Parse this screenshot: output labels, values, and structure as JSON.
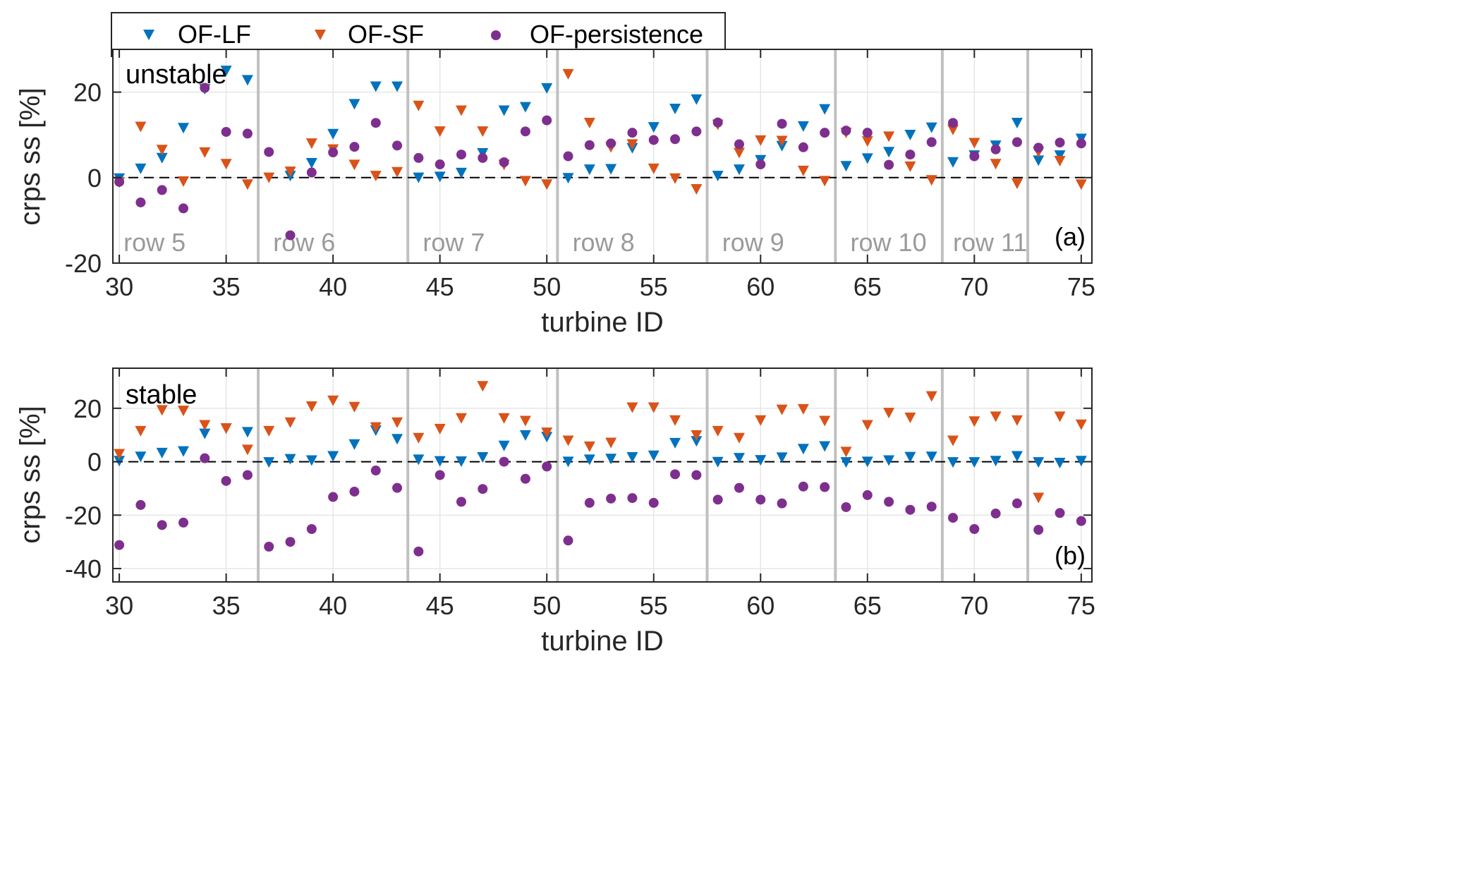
{
  "legend": {
    "entries": [
      {
        "name": "OF-LF",
        "color": "#0072BD",
        "marker": "triangle-down"
      },
      {
        "name": "OF-SF",
        "color": "#D95319",
        "marker": "triangle-down"
      },
      {
        "name": "OF-persistence",
        "color": "#7E2F8E",
        "marker": "circle"
      }
    ]
  },
  "chart_data": [
    {
      "type": "scatter",
      "panel_label": "(a)",
      "regime_label": "unstable",
      "xlabel": "turbine ID",
      "ylabel": "crps ss [%]",
      "xlim": [
        29.7,
        75.5
      ],
      "ylim": [
        -20,
        30
      ],
      "xticks": [
        30,
        35,
        40,
        45,
        50,
        55,
        60,
        65,
        70,
        75
      ],
      "yticks": [
        -20,
        0,
        20
      ],
      "zero_line": true,
      "grid": true,
      "row_boundaries": [
        36.5,
        43.5,
        50.5,
        57.5,
        63.5,
        68.5,
        72.5
      ],
      "row_labels": [
        {
          "text": "row 5",
          "x": 30.2
        },
        {
          "text": "row 6",
          "x": 37.2
        },
        {
          "text": "row 7",
          "x": 44.2
        },
        {
          "text": "row 8",
          "x": 51.2
        },
        {
          "text": "row 9",
          "x": 58.2
        },
        {
          "text": "row 10",
          "x": 64.2
        },
        {
          "text": "row 11",
          "x": 69.0
        }
      ],
      "x": [
        30,
        31,
        32,
        33,
        34,
        35,
        36,
        37,
        38,
        39,
        40,
        41,
        42,
        43,
        44,
        45,
        46,
        47,
        48,
        49,
        50,
        51,
        52,
        53,
        54,
        55,
        56,
        57,
        58,
        59,
        60,
        61,
        62,
        63,
        64,
        65,
        66,
        67,
        68,
        69,
        70,
        71,
        72,
        73,
        74,
        75
      ],
      "series": [
        {
          "name": "OF-LF",
          "values": [
            0,
            2.3,
            4.8,
            11.8,
            20.9,
            25.2,
            23,
            null,
            0.6,
            3.6,
            10.4,
            17.4,
            21.5,
            21.5,
            0.2,
            0.4,
            1.3,
            5.9,
            15.9,
            16.7,
            21.1,
            0.1,
            2.1,
            2.2,
            7.1,
            12.0,
            16.3,
            18.5,
            0.6,
            2.1,
            4.3,
            7.6,
            12.2,
            16.2,
            2.9,
            4.7,
            6.2,
            10.2,
            11.9,
            3.8,
            5.4,
            7.7,
            13.0,
            4.2,
            5.4,
            9.3
          ]
        },
        {
          "name": "OF-SF",
          "values": [
            -0.9,
            12.1,
            6.7,
            -0.7,
            6.1,
            3.4,
            -1.4,
            0.2,
            1.6,
            8.2,
            6.8,
            3.2,
            0.6,
            1.5,
            17.0,
            11.0,
            15.9,
            11.0,
            3.2,
            -0.6,
            -1.4,
            24.4,
            13.0,
            7.3,
            8.0,
            2.3,
            0,
            -2.5,
            12.6,
            6.0,
            8.9,
            8.8,
            1.8,
            -0.6,
            10.7,
            8.7,
            9.8,
            2.8,
            -0.4,
            11.4,
            8.3,
            3.4,
            -1.2,
            6.2,
            4.1,
            -1.4
          ]
        },
        {
          "name": "OF-persistence",
          "values": [
            -1.0,
            -5.8,
            -2.9,
            -7.2,
            21.0,
            10.7,
            10.3,
            6.0,
            -13.5,
            1.2,
            5.9,
            7.2,
            12.8,
            7.5,
            4.6,
            3.1,
            5.4,
            4.6,
            3.6,
            10.8,
            13.4,
            5.0,
            7.6,
            8.0,
            10.5,
            8.8,
            9.0,
            10.8,
            12.9,
            7.8,
            3.1,
            12.6,
            7.1,
            10.5,
            11.0,
            10.5,
            3.0,
            5.4,
            8.3,
            12.8,
            5.0,
            6.6,
            8.3,
            7.0,
            8.2,
            8.0
          ]
        }
      ]
    },
    {
      "type": "scatter",
      "panel_label": "(b)",
      "regime_label": "stable",
      "xlabel": "turbine ID",
      "ylabel": "crps ss [%]",
      "xlim": [
        29.7,
        75.5
      ],
      "ylim": [
        -45,
        35
      ],
      "xticks": [
        30,
        35,
        40,
        45,
        50,
        55,
        60,
        65,
        70,
        75
      ],
      "yticks": [
        -40,
        -20,
        0,
        20
      ],
      "zero_line": true,
      "grid": true,
      "row_boundaries": [
        36.5,
        43.5,
        50.5,
        57.5,
        63.5,
        68.5,
        72.5
      ],
      "x": [
        30,
        31,
        32,
        33,
        34,
        35,
        36,
        37,
        38,
        39,
        40,
        41,
        42,
        43,
        44,
        45,
        46,
        47,
        48,
        49,
        50,
        51,
        52,
        53,
        54,
        55,
        56,
        57,
        58,
        59,
        60,
        61,
        62,
        63,
        64,
        65,
        66,
        67,
        68,
        69,
        70,
        71,
        72,
        73,
        74,
        75
      ],
      "series": [
        {
          "name": "OF-LF",
          "values": [
            0.6,
            2.2,
            3.6,
            4.2,
            10.8,
            12.8,
            11.4,
            0.1,
            1.3,
            0.8,
            2.4,
            6.8,
            12.0,
            8.8,
            1.1,
            0.5,
            0.4,
            2.0,
            6.3,
            10.2,
            9.6,
            0.3,
            1.1,
            1.4,
            2.0,
            2.6,
            7.3,
            8.0,
            0.2,
            1.7,
            0.9,
            1.9,
            5.1,
            6.1,
            0.1,
            0.3,
            0.8,
            2.1,
            2.2,
            0.1,
            0.1,
            0.6,
            2.4,
            0.1,
            -0.1,
            0.6
          ]
        },
        {
          "name": "OF-SF",
          "values": [
            3.2,
            11.8,
            19.6,
            19.4,
            14.0,
            12.8,
            4.8,
            11.8,
            15.0,
            21.0,
            23.2,
            20.8,
            13.2,
            15.0,
            9.2,
            12.6,
            16.6,
            28.6,
            16.6,
            15.6,
            11.2,
            8.2,
            6.0,
            7.4,
            20.6,
            20.6,
            15.8,
            10.2,
            11.8,
            9.2,
            15.8,
            19.8,
            20.0,
            15.6,
            4.0,
            14.0,
            18.6,
            16.8,
            24.8,
            8.2,
            15.4,
            17.2,
            15.8,
            -13.2,
            17.2,
            14.2
          ]
        },
        {
          "name": "OF-persistence",
          "values": [
            -31.2,
            -16.2,
            -23.7,
            -22.8,
            1.3,
            -7.2,
            -5.0,
            -31.8,
            -30.0,
            -25.2,
            -13.2,
            -11.2,
            -3.3,
            -9.8,
            -33.6,
            -5.0,
            -15.0,
            -10.2,
            0.0,
            -6.4,
            -1.8,
            -29.5,
            -15.4,
            -13.8,
            -13.6,
            -15.4,
            -4.7,
            -5.0,
            -14.2,
            -9.8,
            -14.2,
            -15.6,
            -9.3,
            -9.5,
            -17.0,
            -12.5,
            -15.0,
            -18.0,
            -16.8,
            -21.0,
            -25.2,
            -19.4,
            -15.6,
            -25.5,
            -19.2,
            -22.2
          ]
        }
      ]
    }
  ]
}
